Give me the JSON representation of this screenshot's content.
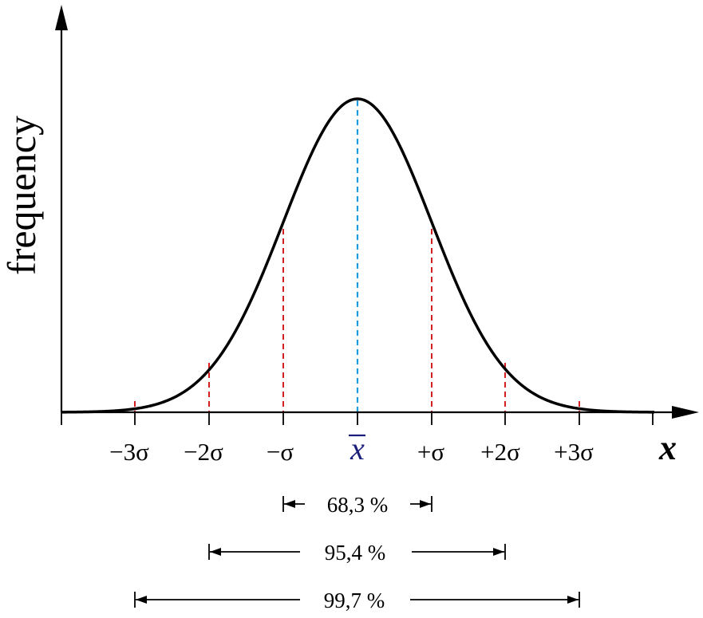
{
  "y_axis_label": "frequency",
  "x_axis_label": "x",
  "mean_label": "x",
  "tick_labels": {
    "m3": "−3σ",
    "m2": "−2σ",
    "m1": "−σ",
    "p1": "+σ",
    "p2": "+2σ",
    "p3": "+3σ"
  },
  "ranges": [
    {
      "label": "68,3 %",
      "sigma": 1
    },
    {
      "label": "95,4 %",
      "sigma": 2
    },
    {
      "label": "99,7 %",
      "sigma": 3
    }
  ],
  "colors": {
    "curve": "#000000",
    "sigma_lines": "#d42020",
    "mean_line": "#1e9be0",
    "mean_label": "#1b1f7a"
  }
}
